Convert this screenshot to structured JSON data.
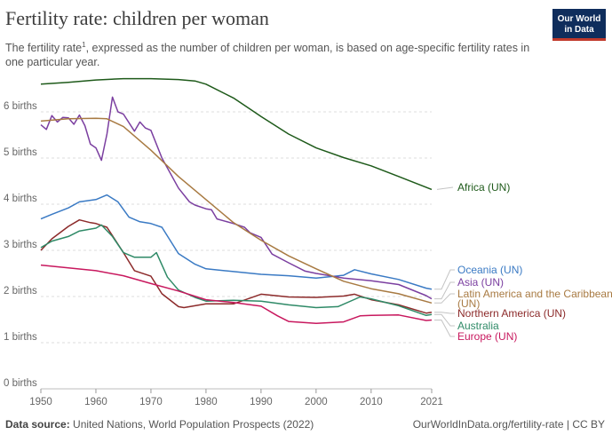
{
  "header": {
    "title": "Fertility rate: children per woman",
    "subtitle_pre": "The fertility rate",
    "subtitle_sup": "1",
    "subtitle_post": ", expressed as the number of children per woman, is based on age-specific fertility rates in one particular year.",
    "logo_line1": "Our World",
    "logo_line2": "in Data"
  },
  "footer": {
    "source_label": "Data source:",
    "source_text": " United Nations, World Population Prospects (2022)",
    "url": "OurWorldInData.org/fertility-rate",
    "license": " | CC BY"
  },
  "colors": {
    "Africa (UN)": "#1e5a1a",
    "Oceania (UN)": "#3a7ac4",
    "Asia (UN)": "#7b3fa0",
    "Latin America and the Caribbean (UN)": "#a87a42",
    "Northern America (UN)": "#8c2a2a",
    "Australia": "#2f8a67",
    "Europe (UN)": "#c8185e"
  },
  "chart_data": {
    "type": "line",
    "title": "Fertility rate: children per woman",
    "xlim": [
      1950,
      2021
    ],
    "ylim": [
      0,
      6.6
    ],
    "y_ticks": [
      0,
      1,
      2,
      3,
      4,
      5,
      6
    ],
    "y_tick_labels": [
      "0 births",
      "1 births",
      "2 births",
      "3 births",
      "4 births",
      "5 births",
      "6 births"
    ],
    "x_ticks": [
      1950,
      1960,
      1970,
      1980,
      1990,
      2000,
      2010,
      2021
    ],
    "x_tick_labels": [
      "1950",
      "1960",
      "1970",
      "1980",
      "1990",
      "2000",
      "2010",
      "2021"
    ],
    "grid": "horizontal dashed",
    "legend": "right, line-end labels",
    "series": [
      {
        "name": "Africa (UN)",
        "x": [
          1950,
          1955,
          1960,
          1965,
          1970,
          1975,
          1978,
          1980,
          1985,
          1990,
          1995,
          2000,
          2005,
          2010,
          2015,
          2021
        ],
        "y": [
          6.6,
          6.64,
          6.69,
          6.72,
          6.72,
          6.7,
          6.67,
          6.6,
          6.3,
          5.9,
          5.52,
          5.22,
          5.01,
          4.83,
          4.6,
          4.32
        ]
      },
      {
        "name": "Oceania (UN)",
        "x": [
          1950,
          1952,
          1955,
          1957,
          1960,
          1962,
          1964,
          1966,
          1968,
          1970,
          1972,
          1975,
          1978,
          1980,
          1985,
          1990,
          1995,
          2000,
          2005,
          2007,
          2010,
          2015,
          2020,
          2021
        ],
        "y": [
          3.68,
          3.78,
          3.92,
          4.05,
          4.1,
          4.2,
          4.05,
          3.72,
          3.62,
          3.58,
          3.5,
          2.93,
          2.7,
          2.6,
          2.54,
          2.48,
          2.45,
          2.4,
          2.46,
          2.58,
          2.49,
          2.37,
          2.18,
          2.16
        ]
      },
      {
        "name": "Asia (UN)",
        "x": [
          1950,
          1951,
          1952,
          1953,
          1954,
          1955,
          1956,
          1957,
          1958,
          1959,
          1960,
          1961,
          1962,
          1963,
          1964,
          1965,
          1967,
          1968,
          1969,
          1970,
          1972,
          1975,
          1977,
          1978,
          1980,
          1981,
          1982,
          1985,
          1987,
          1988,
          1990,
          1992,
          1995,
          1998,
          2000,
          2005,
          2010,
          2015,
          2020,
          2021
        ],
        "y": [
          5.72,
          5.62,
          5.92,
          5.78,
          5.88,
          5.87,
          5.73,
          5.93,
          5.7,
          5.3,
          5.22,
          4.95,
          5.52,
          6.32,
          6.0,
          5.95,
          5.58,
          5.78,
          5.65,
          5.6,
          5.0,
          4.35,
          4.05,
          3.98,
          3.9,
          3.88,
          3.68,
          3.58,
          3.5,
          3.38,
          3.28,
          2.92,
          2.73,
          2.55,
          2.5,
          2.4,
          2.34,
          2.26,
          2.02,
          1.95
        ]
      },
      {
        "name": "Latin America and the Caribbean (UN)",
        "x": [
          1950,
          1955,
          1960,
          1962,
          1965,
          1970,
          1975,
          1980,
          1985,
          1990,
          1995,
          2000,
          2005,
          2010,
          2015,
          2021
        ],
        "y": [
          5.8,
          5.85,
          5.86,
          5.85,
          5.68,
          5.17,
          4.6,
          4.1,
          3.6,
          3.22,
          2.88,
          2.6,
          2.33,
          2.17,
          2.06,
          1.86
        ]
      },
      {
        "name": "Northern America (UN)",
        "x": [
          1950,
          1952,
          1955,
          1957,
          1959,
          1960,
          1962,
          1965,
          1967,
          1970,
          1972,
          1975,
          1976,
          1980,
          1985,
          1990,
          1995,
          2000,
          2005,
          2007,
          2010,
          2015,
          2020,
          2021
        ],
        "y": [
          3.0,
          3.25,
          3.52,
          3.66,
          3.6,
          3.58,
          3.5,
          2.95,
          2.56,
          2.44,
          2.06,
          1.78,
          1.76,
          1.84,
          1.84,
          2.05,
          1.99,
          1.98,
          2.01,
          2.05,
          1.93,
          1.82,
          1.64,
          1.66
        ]
      },
      {
        "name": "Australia",
        "x": [
          1950,
          1952,
          1955,
          1957,
          1960,
          1961,
          1963,
          1965,
          1967,
          1970,
          1971,
          1973,
          1975,
          1978,
          1980,
          1985,
          1990,
          1995,
          2000,
          2004,
          2008,
          2010,
          2015,
          2020,
          2021
        ],
        "y": [
          3.06,
          3.2,
          3.3,
          3.42,
          3.48,
          3.55,
          3.3,
          2.95,
          2.85,
          2.85,
          2.95,
          2.42,
          2.14,
          1.98,
          1.9,
          1.92,
          1.9,
          1.82,
          1.76,
          1.78,
          1.99,
          1.95,
          1.8,
          1.59,
          1.61
        ]
      },
      {
        "name": "Europe (UN)",
        "x": [
          1950,
          1955,
          1960,
          1965,
          1970,
          1975,
          1980,
          1985,
          1990,
          1993,
          1995,
          2000,
          2005,
          2008,
          2010,
          2015,
          2020,
          2021
        ],
        "y": [
          2.68,
          2.62,
          2.56,
          2.45,
          2.28,
          2.12,
          1.93,
          1.87,
          1.79,
          1.58,
          1.46,
          1.42,
          1.45,
          1.58,
          1.59,
          1.6,
          1.48,
          1.49
        ]
      }
    ],
    "line_labels": [
      {
        "series": "Africa (UN)",
        "text": "Africa (UN)"
      },
      {
        "series": "Oceania (UN)",
        "text": "Oceania (UN)"
      },
      {
        "series": "Asia (UN)",
        "text": "Asia (UN)"
      },
      {
        "series": "Latin America and the Caribbean (UN)",
        "text": "Latin America and the Caribbean"
      },
      {
        "series": "Latin America and the Caribbean (UN)",
        "text": "(UN)"
      },
      {
        "series": "Northern America (UN)",
        "text": "Northern America (UN)"
      },
      {
        "series": "Australia",
        "text": "Australia"
      },
      {
        "series": "Europe (UN)",
        "text": "Europe (UN)"
      }
    ]
  }
}
